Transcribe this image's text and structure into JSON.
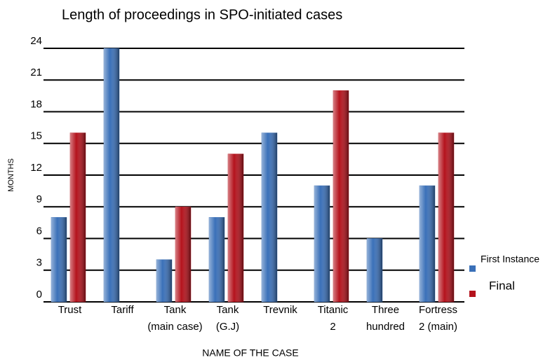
{
  "chart_data": {
    "type": "bar",
    "title": "Length of proceedings in SPO-initiated cases",
    "y_label": "MONTHS",
    "x_label": "NAME OF THE CASE",
    "categories": [
      [
        "Trust"
      ],
      [
        "Tariff"
      ],
      [
        "Tank",
        "(main case)"
      ],
      [
        "Tank",
        "(G.J)"
      ],
      [
        "Trevnik"
      ],
      [
        "Titanic",
        "2"
      ],
      [
        "Three",
        "hundred"
      ],
      [
        "Fortress",
        "2 (main)"
      ]
    ],
    "series": [
      {
        "name": "First Instance",
        "color": "#3a70b8",
        "values": [
          8,
          24,
          4,
          8,
          16,
          11,
          6,
          11
        ]
      },
      {
        "name": "Final",
        "color": "#b4121c",
        "values": [
          16,
          null,
          9,
          14,
          null,
          20,
          null,
          16
        ]
      }
    ],
    "ylim": [
      0,
      24
    ],
    "yticks": [
      0,
      3,
      6,
      9,
      12,
      15,
      18,
      21,
      24
    ],
    "grid": true,
    "legend": "right"
  }
}
